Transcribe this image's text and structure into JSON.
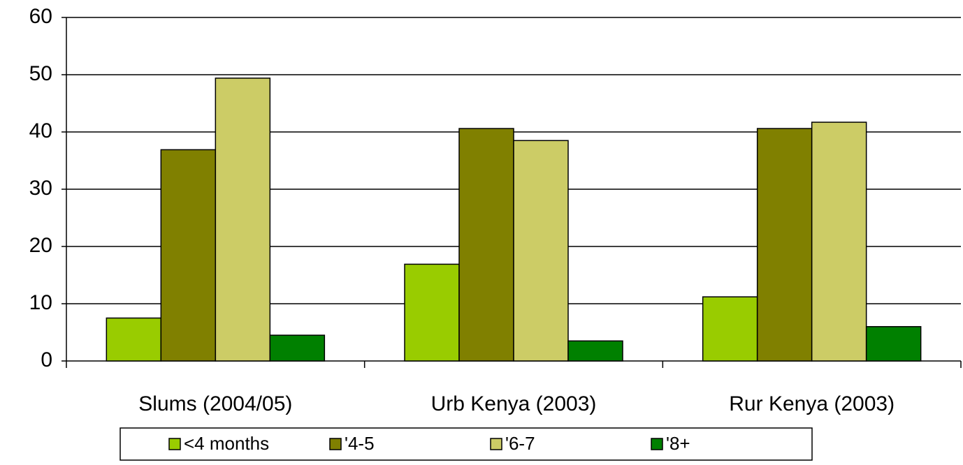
{
  "chart_data": {
    "type": "bar",
    "categories": [
      "Slums (2004/05)",
      "Urb Kenya (2003)",
      "Rur Kenya (2003)"
    ],
    "series": [
      {
        "name": "<4 months",
        "color": "#99cc00",
        "values": [
          7.5,
          16.9,
          11.2
        ]
      },
      {
        "name": "'4-5",
        "color": "#808000",
        "values": [
          36.9,
          40.6,
          40.6
        ]
      },
      {
        "name": "'6-7",
        "color": "#cccc66",
        "values": [
          49.4,
          38.5,
          41.7
        ]
      },
      {
        "name": "'8+",
        "color": "#008000",
        "values": [
          4.5,
          3.5,
          6.0
        ]
      }
    ],
    "ylim": [
      0,
      60
    ],
    "yticks": [
      0,
      10,
      20,
      30,
      40,
      50,
      60
    ],
    "grid": true
  }
}
